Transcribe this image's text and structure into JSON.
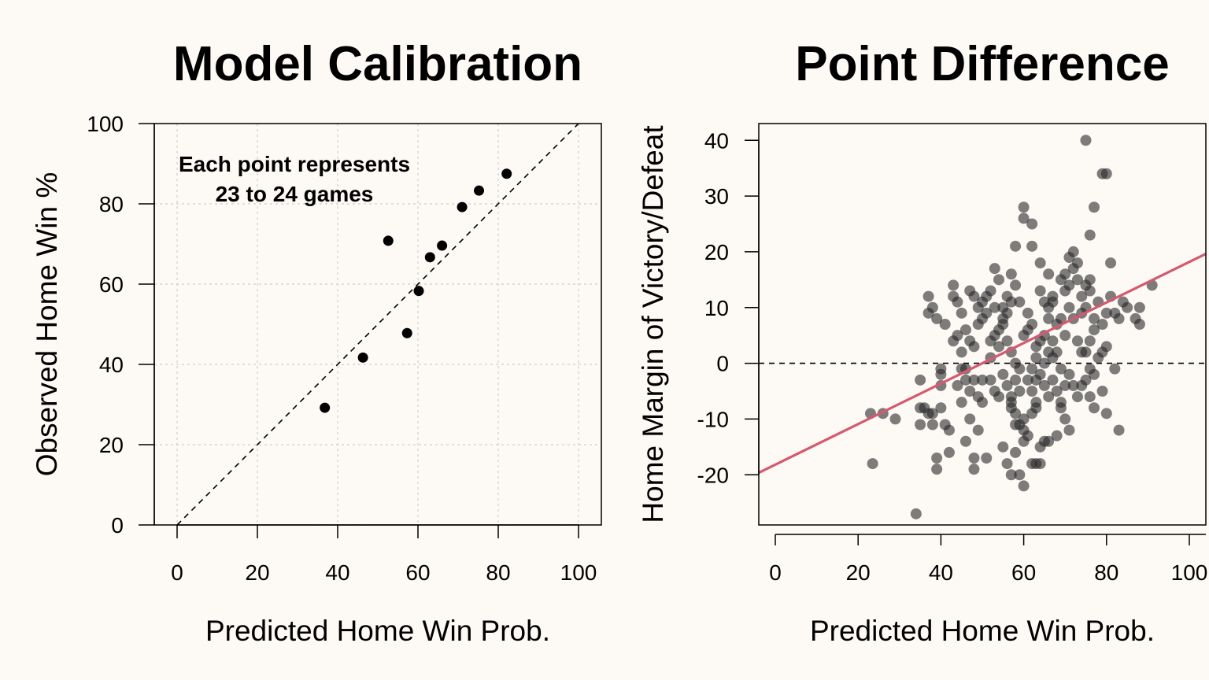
{
  "chart_data": [
    {
      "type": "scatter",
      "title": "Model Calibration",
      "xlabel": "Predicted Home Win Prob.",
      "ylabel": "Observed Home Win %",
      "xlim": [
        0,
        100
      ],
      "ylim": [
        0,
        100
      ],
      "xticks": [
        "0",
        "20",
        "40",
        "60",
        "80",
        "100"
      ],
      "yticks": [
        "0",
        "20",
        "40",
        "60",
        "80",
        "100"
      ],
      "grid": true,
      "reference_line": {
        "style": "dashed",
        "slope": 1,
        "intercept": 0
      },
      "annotation": [
        "Each point represents",
        "23 to 24 games"
      ],
      "point_color": "#000000",
      "x": [
        36.8,
        46.3,
        52.6,
        57.3,
        60.2,
        63.0,
        66.0,
        71.0,
        75.2,
        82.1
      ],
      "y": [
        29.2,
        41.7,
        70.8,
        47.8,
        58.3,
        66.7,
        69.6,
        79.2,
        83.3,
        87.5
      ]
    },
    {
      "type": "scatter",
      "title": "Point Difference",
      "xlabel": "Predicted Home Win Prob.",
      "ylabel": "Home Margin of Victory/Defeat",
      "xlim": [
        0,
        100
      ],
      "ylim": [
        -29,
        43
      ],
      "xticks": [
        "0",
        "20",
        "40",
        "60",
        "80",
        "100"
      ],
      "yticks": [
        "-20",
        "-10",
        "0",
        "10",
        "20",
        "30",
        "40"
      ],
      "grid": false,
      "reference_line": {
        "style": "dashed",
        "slope": 0,
        "intercept": 0
      },
      "fit_line": {
        "slope": 0.3636,
        "intercept": -18.18,
        "color": "#d45a6f"
      },
      "point_color": "rgba(40,40,40,0.6)",
      "points": [
        [
          34,
          -27
        ],
        [
          23.5,
          -18
        ],
        [
          23,
          -9
        ],
        [
          26,
          -9
        ],
        [
          29,
          -10
        ],
        [
          35,
          -3
        ],
        [
          35,
          -8
        ],
        [
          36,
          -8
        ],
        [
          35,
          -11
        ],
        [
          37,
          -9
        ],
        [
          38,
          -9
        ],
        [
          38,
          -11
        ],
        [
          39,
          -17
        ],
        [
          39,
          -19
        ],
        [
          40,
          -2
        ],
        [
          40,
          -8
        ],
        [
          41,
          -11
        ],
        [
          42,
          -16
        ],
        [
          44,
          -4
        ],
        [
          45,
          -1
        ],
        [
          45,
          -7
        ],
        [
          46,
          -14
        ],
        [
          48,
          -17
        ],
        [
          47,
          -10
        ],
        [
          47,
          -5
        ],
        [
          48,
          -3
        ],
        [
          48,
          -19
        ],
        [
          49,
          -6
        ],
        [
          50,
          -3
        ],
        [
          51,
          -17
        ],
        [
          50,
          -7
        ],
        [
          49,
          -12
        ],
        [
          37,
          12
        ],
        [
          37,
          9
        ],
        [
          38,
          10
        ],
        [
          39,
          8
        ],
        [
          40,
          -1
        ],
        [
          40,
          -4
        ],
        [
          41,
          7
        ],
        [
          42,
          -12
        ],
        [
          43,
          14
        ],
        [
          43,
          12
        ],
        [
          44,
          11
        ],
        [
          45,
          9
        ],
        [
          46,
          6
        ],
        [
          47,
          4
        ],
        [
          48,
          3
        ],
        [
          46,
          -1
        ],
        [
          49,
          7
        ],
        [
          50,
          8
        ],
        [
          51,
          12
        ],
        [
          52,
          1
        ],
        [
          52,
          -3
        ],
        [
          53,
          -5
        ],
        [
          54,
          -6
        ],
        [
          53,
          17
        ],
        [
          54,
          15
        ],
        [
          55,
          10
        ],
        [
          56,
          12
        ],
        [
          57,
          11
        ],
        [
          55,
          7
        ],
        [
          56,
          4
        ],
        [
          57,
          2
        ],
        [
          58,
          0
        ],
        [
          59,
          -1
        ],
        [
          55,
          -2
        ],
        [
          57,
          -8
        ],
        [
          58,
          -9
        ],
        [
          59,
          -11
        ],
        [
          60,
          -12
        ],
        [
          61,
          -13
        ],
        [
          60,
          -10
        ],
        [
          62,
          -9
        ],
        [
          63,
          -8
        ],
        [
          57,
          -20
        ],
        [
          59,
          -20
        ],
        [
          62,
          -18
        ],
        [
          63,
          -18
        ],
        [
          64,
          -18
        ],
        [
          60,
          -14
        ],
        [
          64,
          -15
        ],
        [
          65,
          -14
        ],
        [
          66,
          -14
        ],
        [
          58,
          -16
        ],
        [
          60,
          28
        ],
        [
          60,
          26
        ],
        [
          62,
          25
        ],
        [
          58,
          21
        ],
        [
          62,
          21
        ],
        [
          64,
          18
        ],
        [
          66,
          16
        ],
        [
          67,
          11
        ],
        [
          64,
          13
        ],
        [
          65,
          11
        ],
        [
          66,
          10
        ],
        [
          68,
          7
        ],
        [
          69,
          8
        ],
        [
          67,
          4
        ],
        [
          70,
          5
        ],
        [
          68,
          2
        ],
        [
          69,
          -1
        ],
        [
          71,
          -2
        ],
        [
          72,
          -4
        ],
        [
          73,
          -6
        ],
        [
          70,
          13
        ],
        [
          71,
          14
        ],
        [
          72,
          17
        ],
        [
          71,
          19
        ],
        [
          72,
          20
        ],
        [
          73,
          18
        ],
        [
          73,
          15
        ],
        [
          74,
          12
        ],
        [
          75,
          14
        ],
        [
          74,
          9
        ],
        [
          76,
          15
        ],
        [
          76,
          13
        ],
        [
          75,
          10
        ],
        [
          77,
          8
        ],
        [
          77,
          6
        ],
        [
          76,
          4
        ],
        [
          75,
          2
        ],
        [
          75,
          -3
        ],
        [
          74,
          -4
        ],
        [
          76,
          -6
        ],
        [
          77,
          -2
        ],
        [
          78,
          1
        ],
        [
          79,
          -5
        ],
        [
          75,
          40
        ],
        [
          76,
          23
        ],
        [
          77,
          28
        ],
        [
          79,
          34
        ],
        [
          80,
          34
        ],
        [
          81,
          18
        ],
        [
          79,
          2
        ],
        [
          80,
          9
        ],
        [
          81,
          12
        ],
        [
          82,
          9
        ],
        [
          83,
          8
        ],
        [
          84,
          11
        ],
        [
          85,
          10
        ],
        [
          88,
          10
        ],
        [
          87,
          8
        ],
        [
          88,
          7
        ],
        [
          91,
          14
        ],
        [
          80,
          -9
        ],
        [
          83,
          -12
        ],
        [
          80,
          3
        ],
        [
          60,
          5
        ],
        [
          61,
          6
        ],
        [
          62,
          7
        ],
        [
          63,
          3
        ],
        [
          64,
          4
        ],
        [
          65,
          5
        ],
        [
          63,
          1
        ],
        [
          64,
          -2
        ],
        [
          65,
          -4
        ],
        [
          66,
          -6
        ],
        [
          67,
          -3
        ],
        [
          68,
          -5
        ],
        [
          69,
          -8
        ],
        [
          70,
          -10
        ],
        [
          71,
          -12
        ],
        [
          68,
          -13
        ],
        [
          69,
          -7
        ],
        [
          70,
          -4
        ],
        [
          61,
          -3
        ],
        [
          62,
          -5
        ],
        [
          63,
          -7
        ],
        [
          56,
          -4
        ],
        [
          57,
          -6
        ],
        [
          58,
          -3
        ],
        [
          59,
          -5
        ],
        [
          53,
          5
        ],
        [
          54,
          3
        ],
        [
          55,
          8
        ],
        [
          56,
          9
        ],
        [
          50,
          11
        ],
        [
          51,
          9
        ],
        [
          52,
          13
        ],
        [
          49,
          10
        ],
        [
          48,
          12
        ],
        [
          47,
          13
        ],
        [
          44,
          5
        ],
        [
          43,
          4
        ],
        [
          45,
          2
        ],
        [
          46,
          -3
        ],
        [
          52,
          4
        ],
        [
          53,
          10
        ],
        [
          54,
          6
        ],
        [
          57,
          16
        ],
        [
          58,
          14
        ],
        [
          59,
          11
        ],
        [
          61,
          9
        ],
        [
          66,
          8
        ],
        [
          67,
          12
        ],
        [
          69,
          15
        ],
        [
          70,
          16
        ],
        [
          71,
          10
        ],
        [
          72,
          8
        ],
        [
          73,
          4
        ],
        [
          74,
          2
        ],
        [
          78,
          11
        ],
        [
          79,
          7
        ],
        [
          60,
          -22
        ],
        [
          55,
          -15
        ],
        [
          56,
          -18
        ],
        [
          57,
          -7
        ],
        [
          58,
          -11
        ],
        [
          62,
          -1
        ],
        [
          63,
          -3
        ],
        [
          65,
          0
        ],
        [
          66,
          2
        ],
        [
          67,
          1
        ],
        [
          76,
          -1
        ],
        [
          77,
          -8
        ],
        [
          82,
          -1
        ]
      ]
    }
  ]
}
